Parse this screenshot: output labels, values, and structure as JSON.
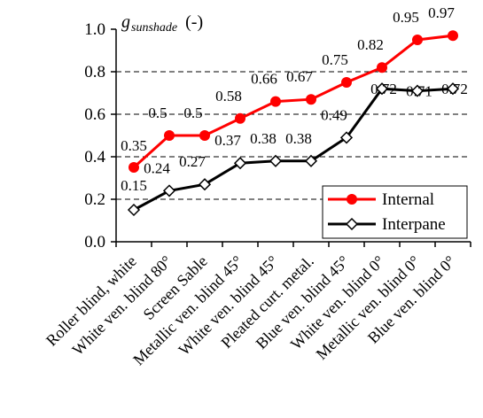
{
  "chart_data": {
    "type": "line",
    "ylabel": {
      "main": "g",
      "subscript": "sunshade",
      "unit": "(-)"
    },
    "ylim": [
      0,
      1.0
    ],
    "yticks": [
      "0.0",
      "0.2",
      "0.4",
      "0.6",
      "0.8",
      "1.0"
    ],
    "yticks_values": [
      0,
      0.2,
      0.4,
      0.6,
      0.8,
      1.0
    ],
    "grid": "horizontal-dashed",
    "legend_position": "bottom-right",
    "categories": [
      "Roller blind, white",
      "White ven. blind 80°",
      "Screen Sable",
      "Metallic ven. blind 45°",
      "White ven. blind 45°",
      "Pleated curt. metal.",
      "Blue ven. blind 45°",
      "White ven. blind 0°",
      "Metallic ven. blind 0°",
      "Blue ven. blind 0°"
    ],
    "series": [
      {
        "name": "Internal",
        "color": "#ff0000",
        "marker": "circle-filled",
        "values": [
          0.35,
          0.5,
          0.5,
          0.58,
          0.66,
          0.67,
          0.75,
          0.82,
          0.95,
          0.97
        ],
        "labels": [
          "0.35",
          "0.5",
          "0.5",
          "0.58",
          "0.66",
          "0.67",
          "0.75",
          "0.82",
          "0.95",
          "0.97"
        ]
      },
      {
        "name": "Interpane",
        "color": "#000000",
        "marker": "diamond-open",
        "values": [
          0.15,
          0.24,
          0.27,
          0.37,
          0.38,
          0.38,
          0.49,
          0.72,
          0.71,
          0.72
        ],
        "labels": [
          "0.15",
          "0.24",
          "0.27",
          "0.37",
          "0.38",
          "0.38",
          "0.49",
          "0.72",
          "0.71",
          "0.72"
        ]
      }
    ]
  }
}
